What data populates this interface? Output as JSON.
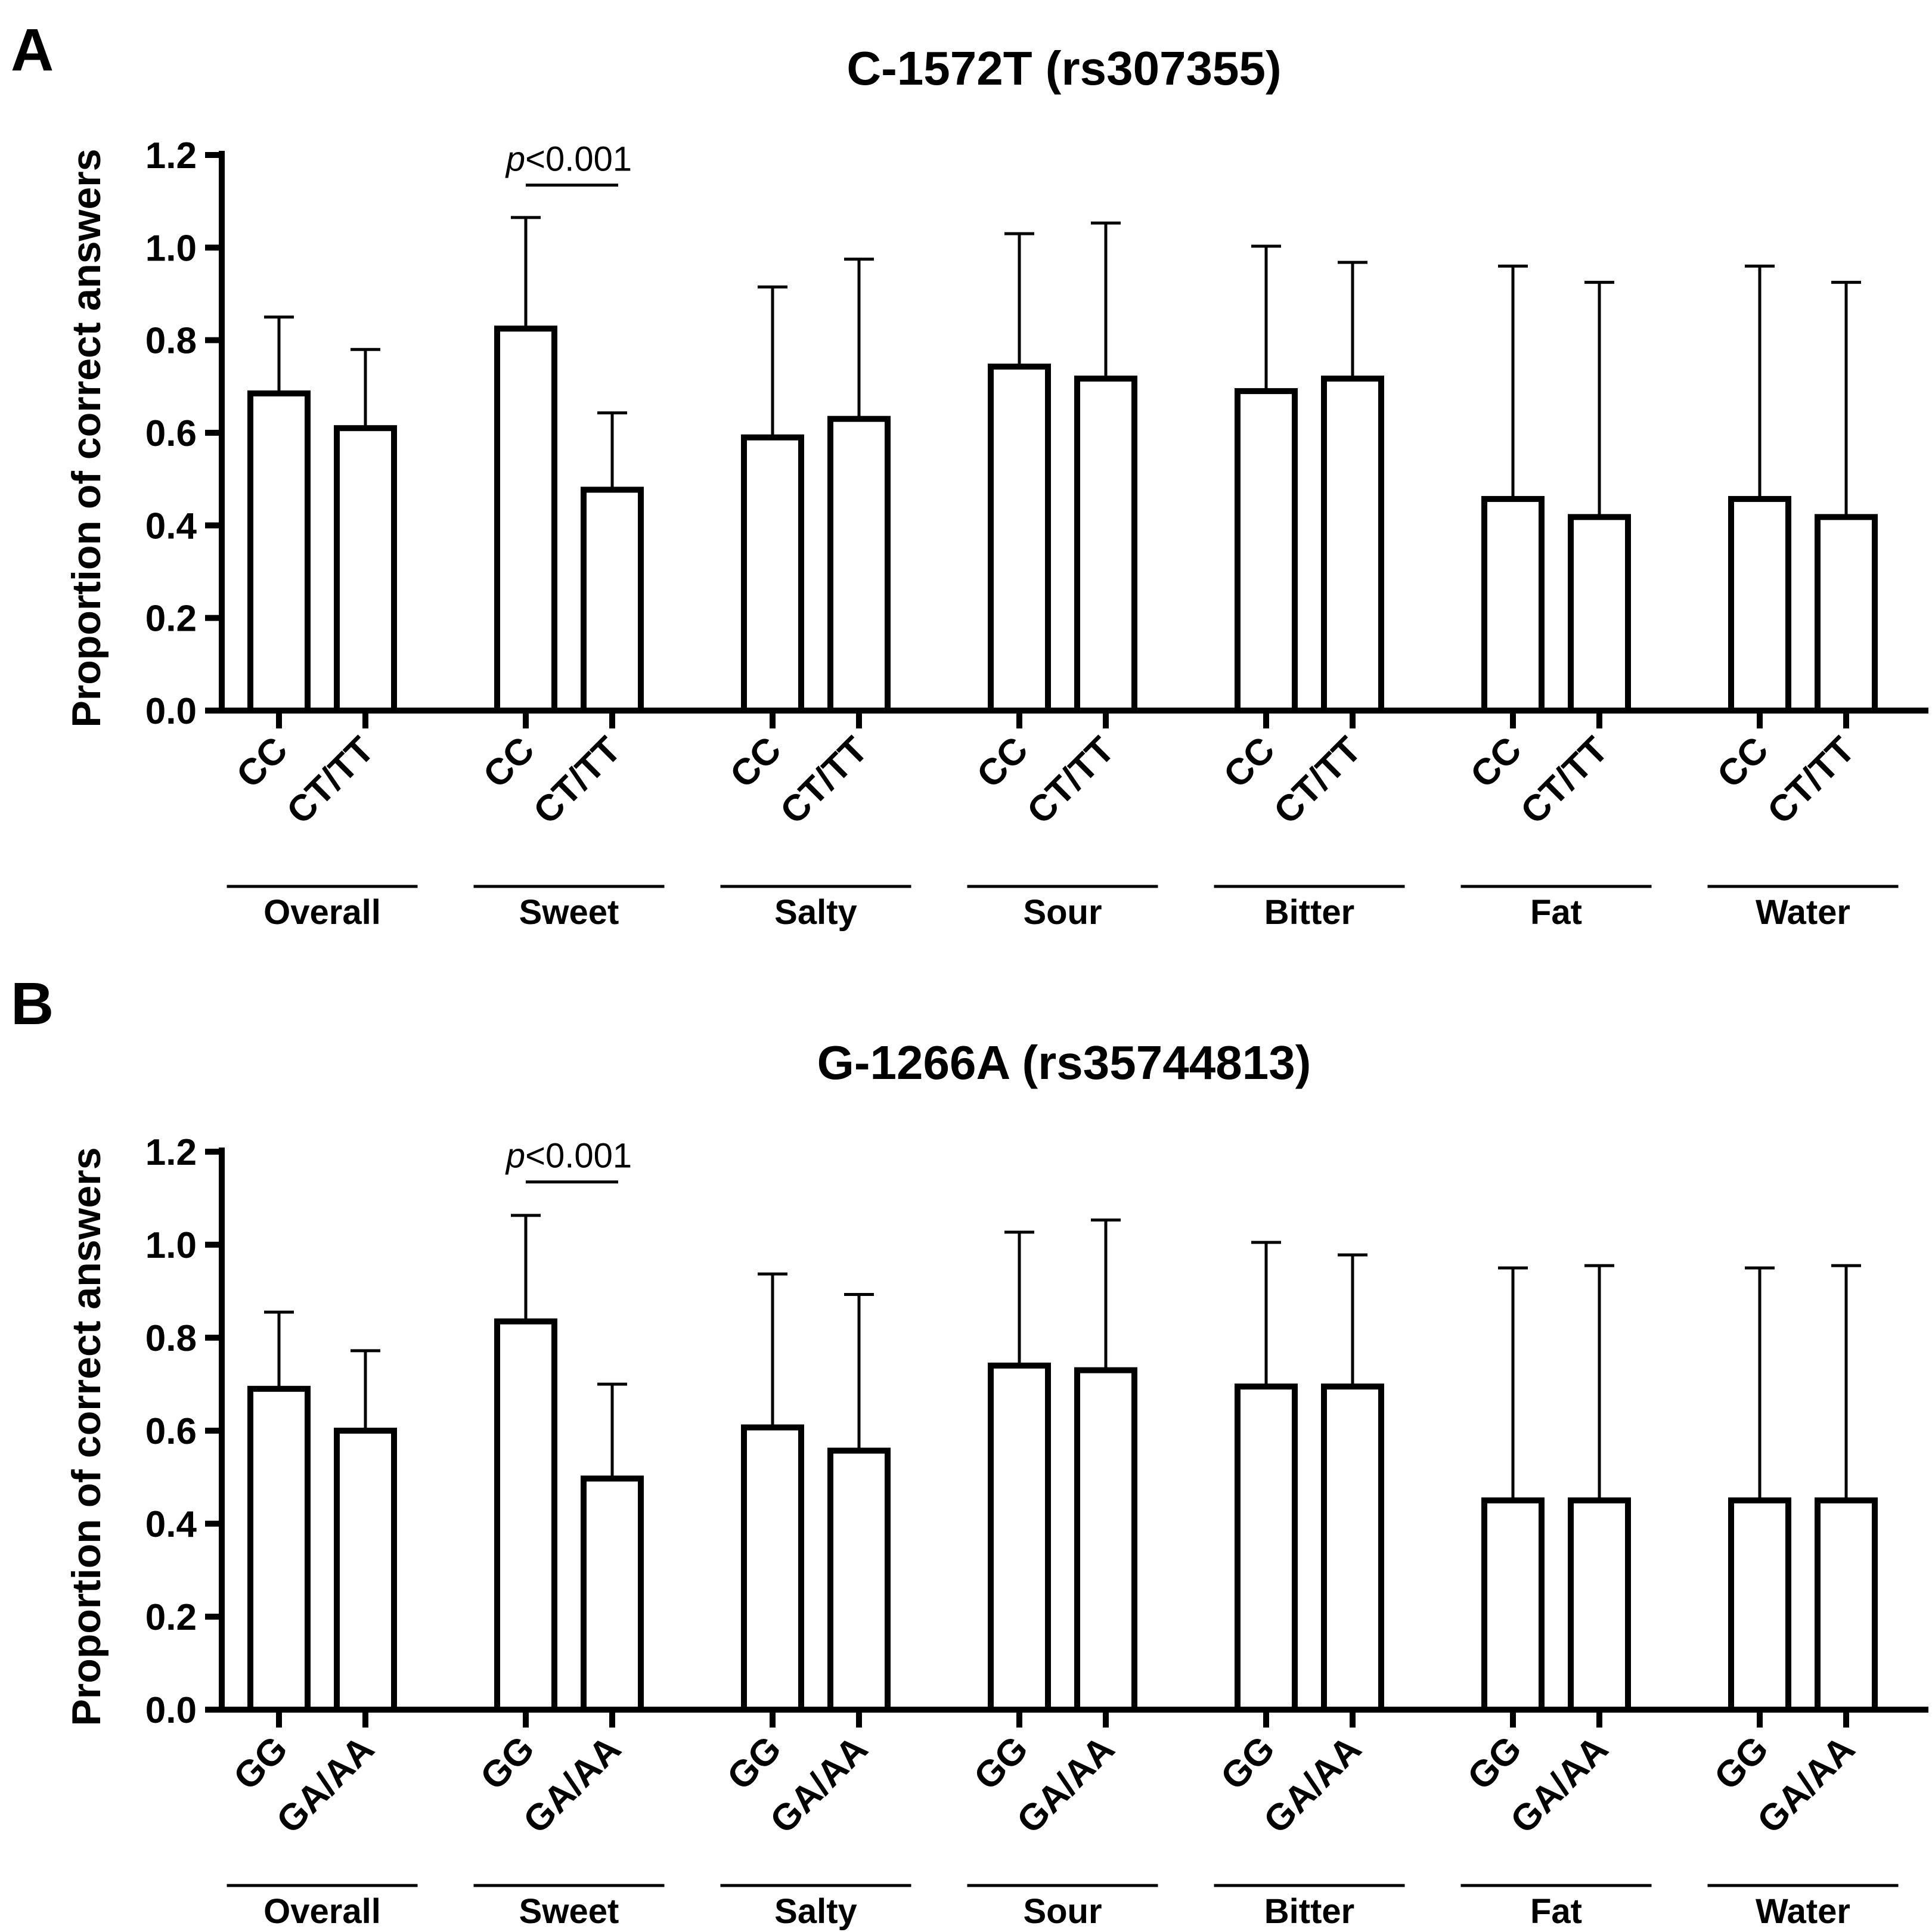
{
  "chart_data": [
    {
      "panel": "A",
      "type": "bar",
      "title": "C-1572T (rs307355)",
      "ylabel": "Proportion of correct answers",
      "xlabel": "",
      "ylim": [
        0,
        1.2
      ],
      "yticks": [
        "0.0",
        "0.2",
        "0.4",
        "0.6",
        "0.8",
        "1.0",
        "1.2"
      ],
      "genotypes": [
        "CC",
        "CT/TT"
      ],
      "groups": [
        {
          "name": "Overall",
          "means": [
            0.685,
            0.61
          ],
          "upper": [
            0.85,
            0.78
          ]
        },
        {
          "name": "Sweet",
          "means": [
            0.825,
            0.477
          ],
          "upper": [
            1.065,
            0.643
          ]
        },
        {
          "name": "Salty",
          "means": [
            0.59,
            0.63
          ],
          "upper": [
            0.915,
            0.975
          ]
        },
        {
          "name": "Sour",
          "means": [
            0.743,
            0.717
          ],
          "upper": [
            1.03,
            1.053
          ]
        },
        {
          "name": "Bitter",
          "means": [
            0.69,
            0.717
          ],
          "upper": [
            1.003,
            0.968
          ]
        },
        {
          "name": "Fat",
          "means": [
            0.457,
            0.418
          ],
          "upper": [
            0.96,
            0.925
          ]
        },
        {
          "name": "Water",
          "means": [
            0.457,
            0.418
          ],
          "upper": [
            0.96,
            0.925
          ]
        }
      ],
      "significance": {
        "group": "Sweet",
        "label_p": "p",
        "label_rest": "<0.001"
      }
    },
    {
      "panel": "B",
      "type": "bar",
      "title": "G-1266A (rs35744813)",
      "ylabel": "Proportion of correct answers",
      "xlabel": "",
      "ylim": [
        0,
        1.2
      ],
      "yticks": [
        "0.0",
        "0.2",
        "0.4",
        "0.6",
        "0.8",
        "1.0",
        "1.2"
      ],
      "genotypes": [
        "GG",
        "GA/AA"
      ],
      "groups": [
        {
          "name": "Overall",
          "means": [
            0.69,
            0.6
          ],
          "upper": [
            0.855,
            0.772
          ]
        },
        {
          "name": "Sweet",
          "means": [
            0.835,
            0.497
          ],
          "upper": [
            1.063,
            0.7
          ]
        },
        {
          "name": "Salty",
          "means": [
            0.607,
            0.557
          ],
          "upper": [
            0.937,
            0.893
          ]
        },
        {
          "name": "Sour",
          "means": [
            0.74,
            0.73
          ],
          "upper": [
            1.027,
            1.053
          ]
        },
        {
          "name": "Bitter",
          "means": [
            0.695,
            0.695
          ],
          "upper": [
            1.005,
            0.978
          ]
        },
        {
          "name": "Fat",
          "means": [
            0.45,
            0.45
          ],
          "upper": [
            0.95,
            0.955
          ]
        },
        {
          "name": "Water",
          "means": [
            0.45,
            0.45
          ],
          "upper": [
            0.95,
            0.955
          ]
        }
      ],
      "significance": {
        "group": "Sweet",
        "label_p": "p",
        "label_rest": "<0.001"
      }
    }
  ]
}
